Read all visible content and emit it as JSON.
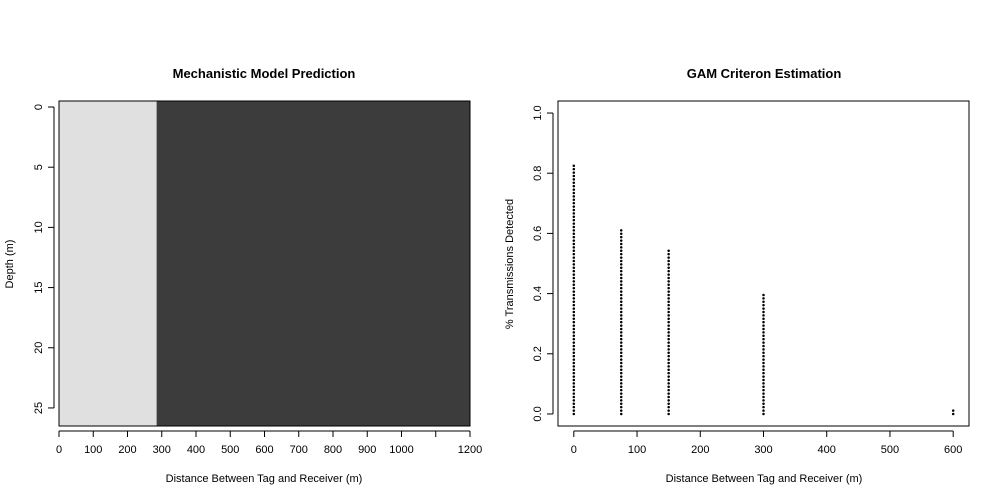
{
  "chart_data": [
    {
      "type": "heatmap",
      "title": "Mechanistic Model Prediction",
      "xlabel": "Distance Between Tag and Receiver (m)",
      "ylabel": "Depth (m)",
      "xlim": [
        0,
        1200
      ],
      "ylim": [
        26.5,
        -0.5
      ],
      "x_ticks": [
        0,
        100,
        200,
        300,
        400,
        500,
        600,
        700,
        800,
        900,
        1000,
        1100,
        1200
      ],
      "x_tick_labels": [
        "0",
        "100",
        "200",
        "300",
        "400",
        "500",
        "600",
        "700",
        "800",
        "900",
        "1000",
        "",
        "1200"
      ],
      "y_ticks": [
        0,
        5,
        10,
        15,
        20,
        25
      ],
      "y_tick_labels": [
        "0",
        "5",
        "10",
        "15",
        "20",
        "25"
      ],
      "regions": [
        {
          "x0": 0,
          "x1": 285,
          "color": "#e0e0e0"
        },
        {
          "x0": 285,
          "x1": 1200,
          "color": "#3c3c3c"
        }
      ]
    },
    {
      "type": "scatter",
      "title": "GAM Criteron Estimation",
      "xlabel": "Distance Between Tag and Receiver (m)",
      "ylabel": "% Transmissions Detected",
      "xlim": [
        -25,
        625
      ],
      "ylim": [
        -0.04,
        1.04
      ],
      "x_ticks": [
        0,
        100,
        200,
        300,
        400,
        500,
        600
      ],
      "y_ticks": [
        0.0,
        0.2,
        0.4,
        0.6,
        0.8,
        1.0
      ],
      "y_tick_labels": [
        "0.0",
        "0.2",
        "0.4",
        "0.6",
        "0.8",
        "1.0"
      ],
      "columns": [
        {
          "x": 0,
          "y_min": 0.0,
          "y_max": 0.83
        },
        {
          "x": 75,
          "y_min": 0.0,
          "y_max": 0.62
        },
        {
          "x": 150,
          "y_min": 0.0,
          "y_max": 0.55
        },
        {
          "x": 300,
          "y_min": 0.0,
          "y_max": 0.4
        },
        {
          "x": 600,
          "y_min": 0.0,
          "y_max": 0.02
        }
      ]
    }
  ]
}
